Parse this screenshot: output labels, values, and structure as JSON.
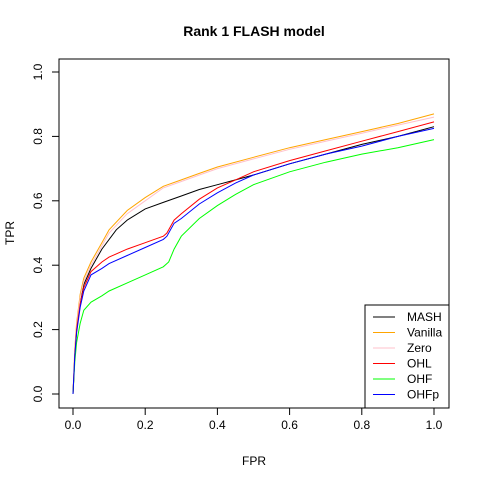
{
  "chart_data": {
    "type": "line",
    "title": "Rank 1 FLASH model",
    "xlabel": "FPR",
    "ylabel": "TPR",
    "xlim": [
      0,
      1
    ],
    "ylim": [
      0,
      1
    ],
    "xticks": [
      "0.0",
      "0.2",
      "0.4",
      "0.6",
      "0.8",
      "1.0"
    ],
    "yticks": [
      "0.0",
      "0.2",
      "0.4",
      "0.6",
      "0.8",
      "1.0"
    ],
    "grid": false,
    "legend_position": "bottom-right",
    "series": [
      {
        "name": "MASH",
        "color": "#000000",
        "points": [
          [
            0,
            0
          ],
          [
            0.005,
            0.12
          ],
          [
            0.01,
            0.2
          ],
          [
            0.02,
            0.28
          ],
          [
            0.03,
            0.34
          ],
          [
            0.05,
            0.39
          ],
          [
            0.08,
            0.45
          ],
          [
            0.12,
            0.51
          ],
          [
            0.15,
            0.54
          ],
          [
            0.2,
            0.575
          ],
          [
            0.25,
            0.595
          ],
          [
            0.3,
            0.615
          ],
          [
            0.35,
            0.635
          ],
          [
            0.4,
            0.65
          ],
          [
            0.45,
            0.665
          ],
          [
            0.5,
            0.68
          ],
          [
            0.6,
            0.715
          ],
          [
            0.7,
            0.745
          ],
          [
            0.8,
            0.775
          ],
          [
            0.9,
            0.8
          ],
          [
            1.0,
            0.83
          ]
        ]
      },
      {
        "name": "Vanilla",
        "color": "#FFA500",
        "points": [
          [
            0,
            0
          ],
          [
            0.005,
            0.14
          ],
          [
            0.01,
            0.22
          ],
          [
            0.02,
            0.31
          ],
          [
            0.03,
            0.36
          ],
          [
            0.05,
            0.41
          ],
          [
            0.08,
            0.47
          ],
          [
            0.1,
            0.51
          ],
          [
            0.15,
            0.57
          ],
          [
            0.2,
            0.61
          ],
          [
            0.25,
            0.645
          ],
          [
            0.3,
            0.665
          ],
          [
            0.35,
            0.685
          ],
          [
            0.4,
            0.705
          ],
          [
            0.5,
            0.735
          ],
          [
            0.6,
            0.765
          ],
          [
            0.7,
            0.79
          ],
          [
            0.8,
            0.815
          ],
          [
            0.9,
            0.84
          ],
          [
            1.0,
            0.87
          ]
        ]
      },
      {
        "name": "Zero",
        "color": "#FFC0CB",
        "points": [
          [
            0,
            0
          ],
          [
            0.005,
            0.13
          ],
          [
            0.01,
            0.21
          ],
          [
            0.02,
            0.3
          ],
          [
            0.03,
            0.35
          ],
          [
            0.05,
            0.4
          ],
          [
            0.08,
            0.46
          ],
          [
            0.1,
            0.5
          ],
          [
            0.15,
            0.56
          ],
          [
            0.2,
            0.6
          ],
          [
            0.25,
            0.64
          ],
          [
            0.3,
            0.66
          ],
          [
            0.35,
            0.68
          ],
          [
            0.4,
            0.7
          ],
          [
            0.5,
            0.73
          ],
          [
            0.6,
            0.76
          ],
          [
            0.7,
            0.785
          ],
          [
            0.8,
            0.81
          ],
          [
            0.9,
            0.835
          ],
          [
            1.0,
            0.86
          ]
        ]
      },
      {
        "name": "OHL",
        "color": "#FF0000",
        "points": [
          [
            0,
            0
          ],
          [
            0.005,
            0.12
          ],
          [
            0.01,
            0.2
          ],
          [
            0.02,
            0.28
          ],
          [
            0.03,
            0.33
          ],
          [
            0.05,
            0.38
          ],
          [
            0.08,
            0.41
          ],
          [
            0.1,
            0.425
          ],
          [
            0.15,
            0.45
          ],
          [
            0.2,
            0.47
          ],
          [
            0.25,
            0.49
          ],
          [
            0.26,
            0.5
          ],
          [
            0.28,
            0.54
          ],
          [
            0.3,
            0.56
          ],
          [
            0.35,
            0.605
          ],
          [
            0.4,
            0.64
          ],
          [
            0.45,
            0.665
          ],
          [
            0.5,
            0.69
          ],
          [
            0.6,
            0.725
          ],
          [
            0.7,
            0.755
          ],
          [
            0.8,
            0.785
          ],
          [
            0.9,
            0.815
          ],
          [
            1.0,
            0.845
          ]
        ]
      },
      {
        "name": "OHF",
        "color": "#00FF00",
        "points": [
          [
            0,
            0
          ],
          [
            0.005,
            0.1
          ],
          [
            0.01,
            0.16
          ],
          [
            0.02,
            0.22
          ],
          [
            0.03,
            0.26
          ],
          [
            0.05,
            0.285
          ],
          [
            0.08,
            0.305
          ],
          [
            0.1,
            0.32
          ],
          [
            0.15,
            0.345
          ],
          [
            0.2,
            0.37
          ],
          [
            0.25,
            0.395
          ],
          [
            0.265,
            0.41
          ],
          [
            0.28,
            0.45
          ],
          [
            0.3,
            0.49
          ],
          [
            0.35,
            0.545
          ],
          [
            0.4,
            0.585
          ],
          [
            0.45,
            0.62
          ],
          [
            0.5,
            0.65
          ],
          [
            0.6,
            0.69
          ],
          [
            0.7,
            0.72
          ],
          [
            0.8,
            0.745
          ],
          [
            0.9,
            0.765
          ],
          [
            1.0,
            0.79
          ]
        ]
      },
      {
        "name": "OHFp",
        "color": "#0000FF",
        "points": [
          [
            0,
            0
          ],
          [
            0.005,
            0.12
          ],
          [
            0.01,
            0.19
          ],
          [
            0.02,
            0.27
          ],
          [
            0.03,
            0.32
          ],
          [
            0.05,
            0.37
          ],
          [
            0.08,
            0.39
          ],
          [
            0.1,
            0.405
          ],
          [
            0.15,
            0.43
          ],
          [
            0.2,
            0.455
          ],
          [
            0.25,
            0.48
          ],
          [
            0.26,
            0.49
          ],
          [
            0.28,
            0.53
          ],
          [
            0.3,
            0.545
          ],
          [
            0.35,
            0.59
          ],
          [
            0.4,
            0.625
          ],
          [
            0.45,
            0.655
          ],
          [
            0.5,
            0.68
          ],
          [
            0.6,
            0.715
          ],
          [
            0.7,
            0.745
          ],
          [
            0.8,
            0.77
          ],
          [
            0.9,
            0.8
          ],
          [
            1.0,
            0.825
          ]
        ]
      }
    ]
  }
}
